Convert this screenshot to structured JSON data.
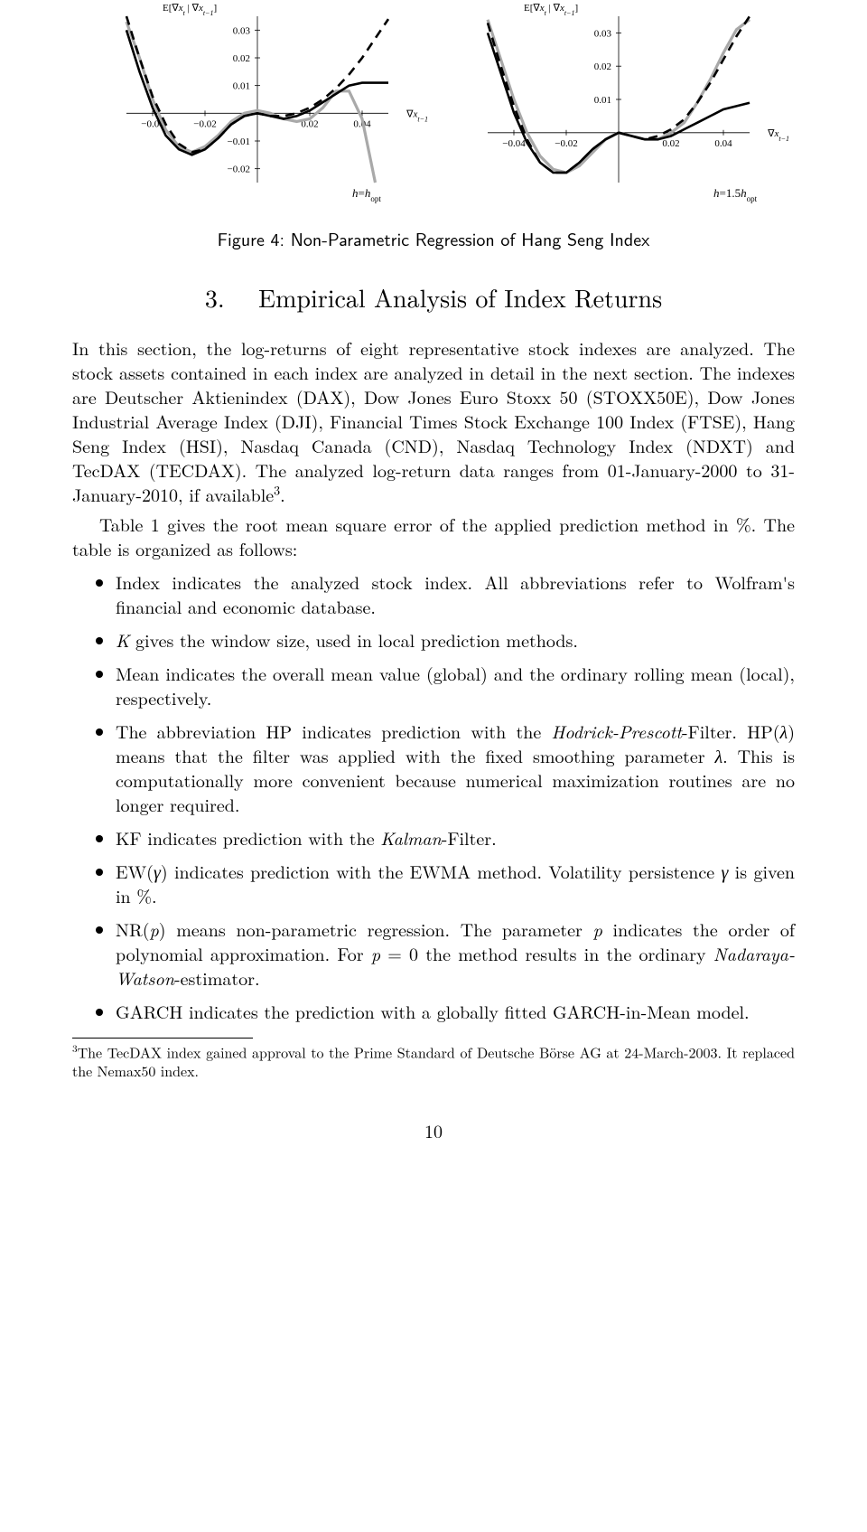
{
  "chart_left": {
    "type": "line",
    "xlabel": "∇x_{t−1}",
    "ylabel": "E[∇x_t | ∇x_{t−1}]",
    "annotation": "h=h_{opt}",
    "xlim": [
      -0.05,
      0.05
    ],
    "ylim": [
      -0.025,
      0.035
    ],
    "xticks": [
      -0.04,
      -0.02,
      0.02,
      0.04
    ],
    "yticks": [
      -0.02,
      -0.01,
      0.01,
      0.02,
      0.03
    ],
    "tick_fontsize": 11,
    "label_fontsize": 11,
    "background_color": "#ffffff",
    "axis_color": "#000000",
    "series": [
      {
        "name": "gray",
        "color": "#a9a9a9",
        "width": 3.2,
        "dash": "none",
        "x": [
          -0.05,
          -0.045,
          -0.04,
          -0.035,
          -0.03,
          -0.025,
          -0.02,
          -0.015,
          -0.01,
          -0.005,
          0,
          0.005,
          0.01,
          0.015,
          0.02,
          0.025,
          0.03,
          0.035,
          0.04,
          0.045
        ],
        "y": [
          0.033,
          0.02,
          0.005,
          -0.006,
          -0.012,
          -0.014,
          -0.012,
          -0.008,
          -0.003,
          0.0,
          0.001,
          0.0,
          -0.002,
          -0.003,
          -0.002,
          0.002,
          0.008,
          0.008,
          -0.002,
          -0.025
        ]
      },
      {
        "name": "dashed",
        "color": "#000000",
        "width": 2.6,
        "dash": "10,7",
        "x": [
          -0.05,
          -0.045,
          -0.04,
          -0.035,
          -0.03,
          -0.025,
          -0.02,
          -0.015,
          -0.01,
          -0.005,
          0,
          0.005,
          0.01,
          0.015,
          0.02,
          0.025,
          0.03,
          0.035,
          0.04,
          0.045,
          0.05
        ],
        "y": [
          0.035,
          0.02,
          0.006,
          -0.004,
          -0.011,
          -0.014,
          -0.013,
          -0.009,
          -0.004,
          -0.001,
          0.0,
          -0.001,
          -0.001,
          0.0,
          0.002,
          0.005,
          0.009,
          0.014,
          0.02,
          0.027,
          0.034
        ]
      },
      {
        "name": "solid",
        "color": "#000000",
        "width": 2.6,
        "dash": "none",
        "x": [
          -0.05,
          -0.045,
          -0.04,
          -0.035,
          -0.03,
          -0.025,
          -0.02,
          -0.015,
          -0.01,
          -0.005,
          0,
          0.005,
          0.01,
          0.015,
          0.02,
          0.025,
          0.03,
          0.035,
          0.04,
          0.045,
          0.05
        ],
        "y": [
          0.03,
          0.015,
          0.002,
          -0.008,
          -0.013,
          -0.015,
          -0.013,
          -0.009,
          -0.004,
          -0.001,
          0.0,
          -0.001,
          -0.002,
          -0.001,
          0.001,
          0.004,
          0.007,
          0.01,
          0.011,
          0.011,
          0.011
        ]
      }
    ]
  },
  "chart_right": {
    "type": "line",
    "xlabel": "∇x_{t−1}",
    "ylabel": "E[∇x_t | ∇x_{t−1}]",
    "annotation": "h=1.5h_{opt}",
    "xlim": [
      -0.05,
      0.05
    ],
    "ylim": [
      -0.015,
      0.035
    ],
    "xticks": [
      -0.04,
      -0.02,
      0.02,
      0.04
    ],
    "yticks": [
      0.01,
      0.02,
      0.03
    ],
    "tick_fontsize": 11,
    "label_fontsize": 11,
    "background_color": "#ffffff",
    "axis_color": "#000000",
    "series": [
      {
        "name": "gray",
        "color": "#a9a9a9",
        "width": 3.2,
        "dash": "none",
        "x": [
          -0.05,
          -0.045,
          -0.04,
          -0.035,
          -0.03,
          -0.025,
          -0.02,
          -0.015,
          -0.01,
          -0.005,
          0,
          0.005,
          0.01,
          0.015,
          0.02,
          0.025,
          0.03,
          0.035,
          0.04,
          0.045,
          0.05
        ],
        "y": [
          0.034,
          0.022,
          0.01,
          0.0,
          -0.007,
          -0.011,
          -0.012,
          -0.01,
          -0.006,
          -0.002,
          0.0,
          -0.001,
          -0.002,
          -0.002,
          0.0,
          0.003,
          0.009,
          0.016,
          0.024,
          0.031,
          0.034
        ]
      },
      {
        "name": "dashed",
        "color": "#000000",
        "width": 2.6,
        "dash": "10,7",
        "x": [
          -0.05,
          -0.045,
          -0.04,
          -0.035,
          -0.03,
          -0.025,
          -0.02,
          -0.015,
          -0.01,
          -0.005,
          0,
          0.005,
          0.01,
          0.015,
          0.02,
          0.025,
          0.03,
          0.035,
          0.04,
          0.045,
          0.05
        ],
        "y": [
          0.033,
          0.02,
          0.008,
          -0.002,
          -0.009,
          -0.012,
          -0.012,
          -0.009,
          -0.005,
          -0.002,
          0.0,
          -0.001,
          -0.002,
          -0.001,
          0.001,
          0.004,
          0.009,
          0.015,
          0.022,
          0.029,
          0.035
        ]
      },
      {
        "name": "solid",
        "color": "#000000",
        "width": 2.6,
        "dash": "none",
        "x": [
          -0.05,
          -0.045,
          -0.04,
          -0.035,
          -0.03,
          -0.025,
          -0.02,
          -0.015,
          -0.01,
          -0.005,
          0,
          0.005,
          0.01,
          0.015,
          0.02,
          0.025,
          0.03,
          0.035,
          0.04,
          0.045,
          0.05
        ],
        "y": [
          0.03,
          0.018,
          0.006,
          -0.003,
          -0.009,
          -0.012,
          -0.012,
          -0.009,
          -0.005,
          -0.002,
          0.0,
          -0.001,
          -0.002,
          -0.002,
          -0.001,
          0.001,
          0.003,
          0.005,
          0.007,
          0.008,
          0.009
        ]
      }
    ]
  },
  "figure_caption": "Figure 4: Non-Parametric Regression of Hang Seng Index",
  "section_number": "3.",
  "section_title": "Empirical Analysis of Index Returns",
  "para1a": "In this section, the log-returns of eight representative stock indexes are analyzed. The stock assets contained in each index are analyzed in detail in the next section. The indexes are Deutscher Aktienindex (DAX), Dow Jones Euro Stoxx 50 (STOXX50E), Dow Jones Industrial Average Index (DJI), Financial Times Stock Exchange 100 Index (FTSE), Hang Seng Index (HSI), Nasdaq Canada (CND), Nasdaq Technology Index (NDXT) and TecDAX (TECDAX). The analyzed log-return data ranges from 01-January-2000 to 31-January-2010, if available",
  "para1_sup": "3",
  "para1b": ".",
  "para2": "Table 1 gives the root mean square error of the applied prediction method in %. The table is organized as follows:",
  "bullets": [
    {
      "html": "Index indicates the analyzed stock index. All abbreviations refer to Wolfram's financial and economic database."
    },
    {
      "html": "<span class='math-i'>K</span> gives the window size, used in local prediction methods."
    },
    {
      "html": "Mean indicates the overall mean value (global) and the ordinary rolling mean (local), respectively."
    },
    {
      "html": "The abbreviation HP indicates prediction with the <span class='math-i'>Hodrick-Prescott</span>-Filter. HP(<span class='math-i'>λ</span>) means that the filter was applied with the fixed smoothing parameter <span class='math-i'>λ</span>. This is computationally more convenient because numerical maximization routines are no longer required."
    },
    {
      "html": "KF indicates prediction with the <span class='math-i'>Kalman</span>-Filter."
    },
    {
      "html": "EW(<span class='math-i'>γ</span>) indicates prediction with the EWMA method. Volatility persistence <span class='math-i'>γ</span> is given in %."
    },
    {
      "html": "NR(<span class='math-i'>p</span>) means non-parametric regression. The parameter <span class='math-i'>p</span> indicates the order of polynomial approximation. For <span class='math-i'>p</span> = 0 the method results in the ordinary <span class='math-i'>Nadaraya-Watson</span>-estimator."
    },
    {
      "html": "GARCH indicates the prediction with a globally fitted GARCH-in-Mean model."
    }
  ],
  "footnote_marker": "3",
  "footnote_text": "The TecDAX index gained approval to the Prime Standard of Deutsche Börse AG at 24-March-2003. It replaced the Nemax50 index.",
  "page_number": "10"
}
